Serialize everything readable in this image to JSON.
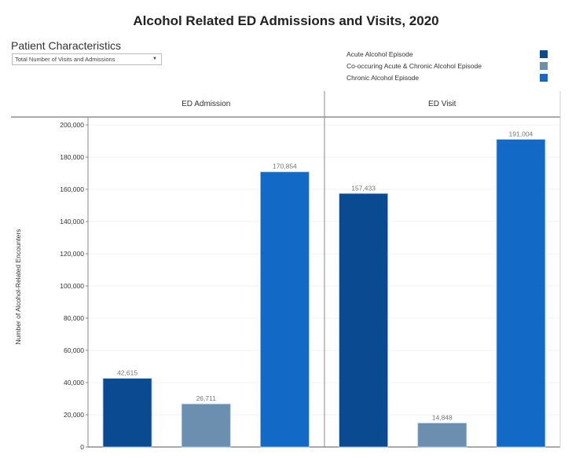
{
  "title": "Alcohol Related ED Admissions and Visits, 2020",
  "filter": {
    "label": "Patient Characteristics",
    "selected": "Total Number of Visits and Admissions"
  },
  "legend": [
    {
      "label": "Acute Alcohol Episode",
      "color": "#0a4a90"
    },
    {
      "label": "Co-occuring Acute & Chronic Alcohol Episode",
      "color": "#6c8fb0"
    },
    {
      "label": "Chronic Alcohol Episode",
      "color": "#1369c6"
    }
  ],
  "chart_data": {
    "type": "bar",
    "panels": [
      "ED Admission",
      "ED Visit"
    ],
    "series": [
      {
        "name": "Acute Alcohol Episode",
        "values": [
          42615,
          157433
        ],
        "labels": [
          "42,615",
          "157,433"
        ]
      },
      {
        "name": "Co-occuring Acute & Chronic Alcohol Episode",
        "values": [
          26711,
          14848
        ],
        "labels": [
          "26,711",
          "14,848"
        ]
      },
      {
        "name": "Chronic Alcohol Episode",
        "values": [
          170854,
          191004
        ],
        "labels": [
          "170,854",
          "191,004"
        ]
      }
    ],
    "ylabel": "Number of Alcohol-Related Encounters",
    "ylim": [
      0,
      200000
    ],
    "yticks": [
      0,
      20000,
      40000,
      60000,
      80000,
      100000,
      120000,
      140000,
      160000,
      180000,
      200000
    ],
    "ytick_labels": [
      "0",
      "20,000",
      "40,000",
      "60,000",
      "80,000",
      "100,000",
      "120,000",
      "140,000",
      "160,000",
      "180,000",
      "200,000"
    ],
    "grid": true
  }
}
